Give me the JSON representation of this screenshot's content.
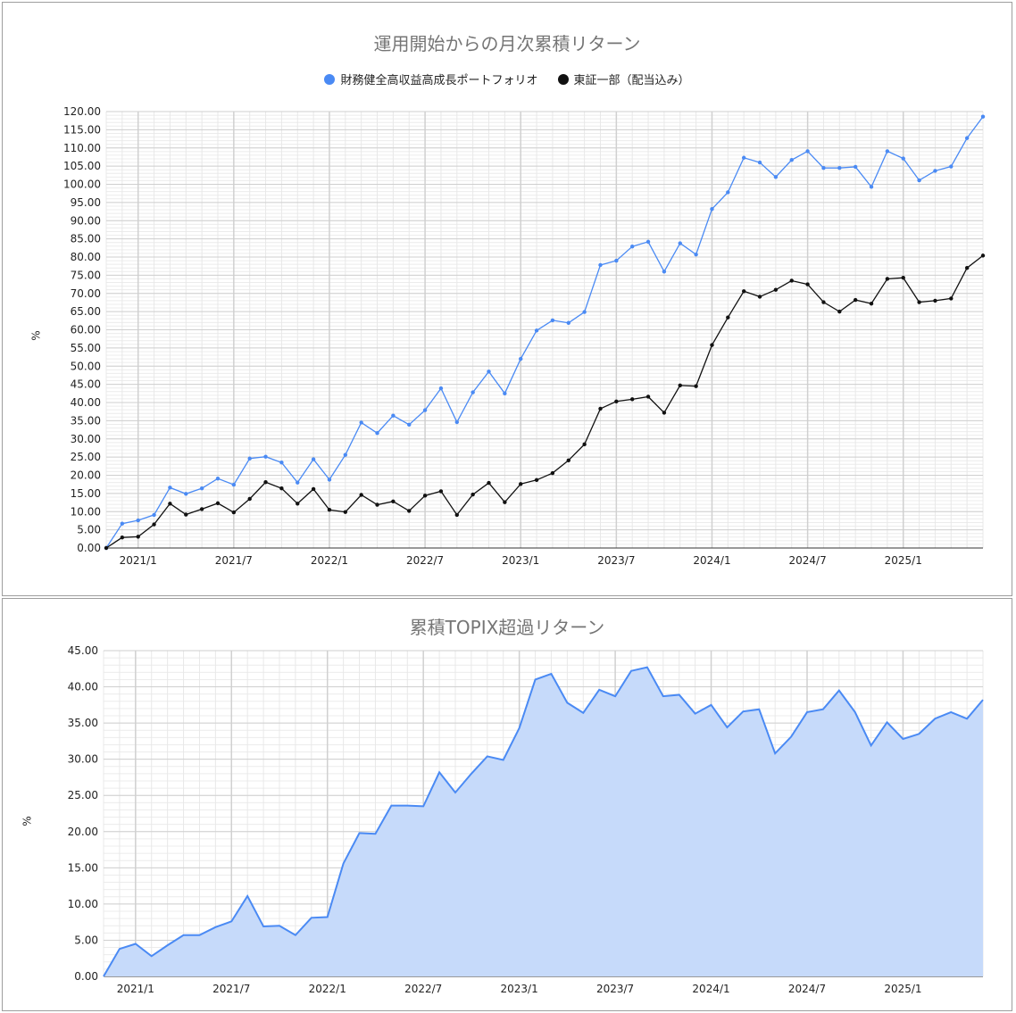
{
  "chart_data": [
    {
      "type": "line",
      "title": "運用開始からの月次累積リターン",
      "ylabel": "%",
      "ylim": [
        0,
        120
      ],
      "ytick_step": 5,
      "legend_position": "top",
      "x_tick_labels": [
        "2021/1",
        "2021/7",
        "2022/1",
        "2022/7",
        "2023/1",
        "2023/7",
        "2024/1",
        "2024/7",
        "2025/1"
      ],
      "x": [
        "2020/11",
        "2020/12",
        "2021/1",
        "2021/2",
        "2021/3",
        "2021/4",
        "2021/5",
        "2021/6",
        "2021/7",
        "2021/8",
        "2021/9",
        "2021/10",
        "2021/11",
        "2021/12",
        "2022/1",
        "2022/2",
        "2022/3",
        "2022/4",
        "2022/5",
        "2022/6",
        "2022/7",
        "2022/8",
        "2022/9",
        "2022/10",
        "2022/11",
        "2022/12",
        "2023/1",
        "2023/2",
        "2023/3",
        "2023/4",
        "2023/5",
        "2023/6",
        "2023/7",
        "2023/8",
        "2023/9",
        "2023/10",
        "2023/11",
        "2023/12",
        "2024/1",
        "2024/2",
        "2024/3",
        "2024/4",
        "2024/5",
        "2024/6",
        "2024/7",
        "2024/8",
        "2024/9",
        "2024/10",
        "2024/11",
        "2024/12",
        "2025/1",
        "2025/2",
        "2025/3",
        "2025/4",
        "2025/5",
        "2025/6"
      ],
      "series": [
        {
          "name": "財務健全高収益高成長ポートフォリオ",
          "color": "#4a8af4",
          "values": [
            0.0,
            6.7,
            7.6,
            9.1,
            16.6,
            14.9,
            16.4,
            19.1,
            17.4,
            24.6,
            25.1,
            23.5,
            18.0,
            24.4,
            18.8,
            25.6,
            34.5,
            31.6,
            36.4,
            33.9,
            37.9,
            43.9,
            34.6,
            42.8,
            48.5,
            42.5,
            52.0,
            59.8,
            62.6,
            61.9,
            64.9,
            77.8,
            79.0,
            82.9,
            84.2,
            76.0,
            83.8,
            80.7,
            93.2,
            97.8,
            107.3,
            106.0,
            102.0,
            106.7,
            109.1,
            104.5,
            104.5,
            104.8,
            99.3,
            109.1,
            107.1,
            101.1,
            103.7,
            104.9,
            112.7,
            118.6
          ]
        },
        {
          "name": "東証一部（配当込み）",
          "color": "#111111",
          "values": [
            0.0,
            2.9,
            3.1,
            6.5,
            12.2,
            9.2,
            10.7,
            12.3,
            9.8,
            13.5,
            18.1,
            16.4,
            12.2,
            16.2,
            10.5,
            9.9,
            14.6,
            11.9,
            12.8,
            10.2,
            14.4,
            15.6,
            9.1,
            14.7,
            17.9,
            12.6,
            17.6,
            18.7,
            20.6,
            24.1,
            28.5,
            38.3,
            40.3,
            40.9,
            41.6,
            37.2,
            44.7,
            44.5,
            55.8,
            63.4,
            70.6,
            69.1,
            71.0,
            73.5,
            72.5,
            67.6,
            65.0,
            68.2,
            67.2,
            74.0,
            74.3,
            67.6,
            68.0,
            68.6,
            77.0,
            80.4
          ]
        }
      ]
    },
    {
      "type": "area",
      "title": "累積TOPIX超過リターン",
      "ylabel": "%",
      "ylim": [
        0,
        45
      ],
      "ytick_step": 5,
      "x_tick_labels": [
        "2021/1",
        "2021/7",
        "2022/1",
        "2022/7",
        "2023/1",
        "2023/7",
        "2024/1",
        "2024/7",
        "2025/1"
      ],
      "x": [
        "2020/11",
        "2020/12",
        "2021/1",
        "2021/2",
        "2021/3",
        "2021/4",
        "2021/5",
        "2021/6",
        "2021/7",
        "2021/8",
        "2021/9",
        "2021/10",
        "2021/11",
        "2021/12",
        "2022/1",
        "2022/2",
        "2022/3",
        "2022/4",
        "2022/5",
        "2022/6",
        "2022/7",
        "2022/8",
        "2022/9",
        "2022/10",
        "2022/11",
        "2022/12",
        "2023/1",
        "2023/2",
        "2023/3",
        "2023/4",
        "2023/5",
        "2023/6",
        "2023/7",
        "2023/8",
        "2023/9",
        "2023/10",
        "2023/11",
        "2023/12",
        "2024/1",
        "2024/2",
        "2024/3",
        "2024/4",
        "2024/5",
        "2024/6",
        "2024/7",
        "2024/8",
        "2024/9",
        "2024/10",
        "2024/11",
        "2024/12",
        "2025/1",
        "2025/2",
        "2025/3",
        "2025/4",
        "2025/5",
        "2025/6"
      ],
      "series": [
        {
          "color": "#4a8af4",
          "fill": "#c6dafa",
          "values": [
            0.0,
            3.8,
            4.5,
            2.8,
            4.3,
            5.7,
            5.7,
            6.8,
            7.6,
            11.1,
            6.9,
            7.0,
            5.7,
            8.1,
            8.2,
            15.6,
            19.8,
            19.7,
            23.6,
            23.6,
            23.5,
            28.2,
            25.4,
            28.0,
            30.4,
            29.9,
            34.3,
            41.0,
            41.8,
            37.8,
            36.4,
            39.6,
            38.7,
            42.2,
            42.7,
            38.7,
            38.9,
            36.3,
            37.5,
            34.4,
            36.6,
            36.9,
            30.8,
            33.1,
            36.5,
            36.9,
            39.5,
            36.5,
            31.9,
            35.1,
            32.8,
            33.5,
            35.6,
            36.5,
            35.6,
            38.2
          ]
        }
      ]
    }
  ]
}
